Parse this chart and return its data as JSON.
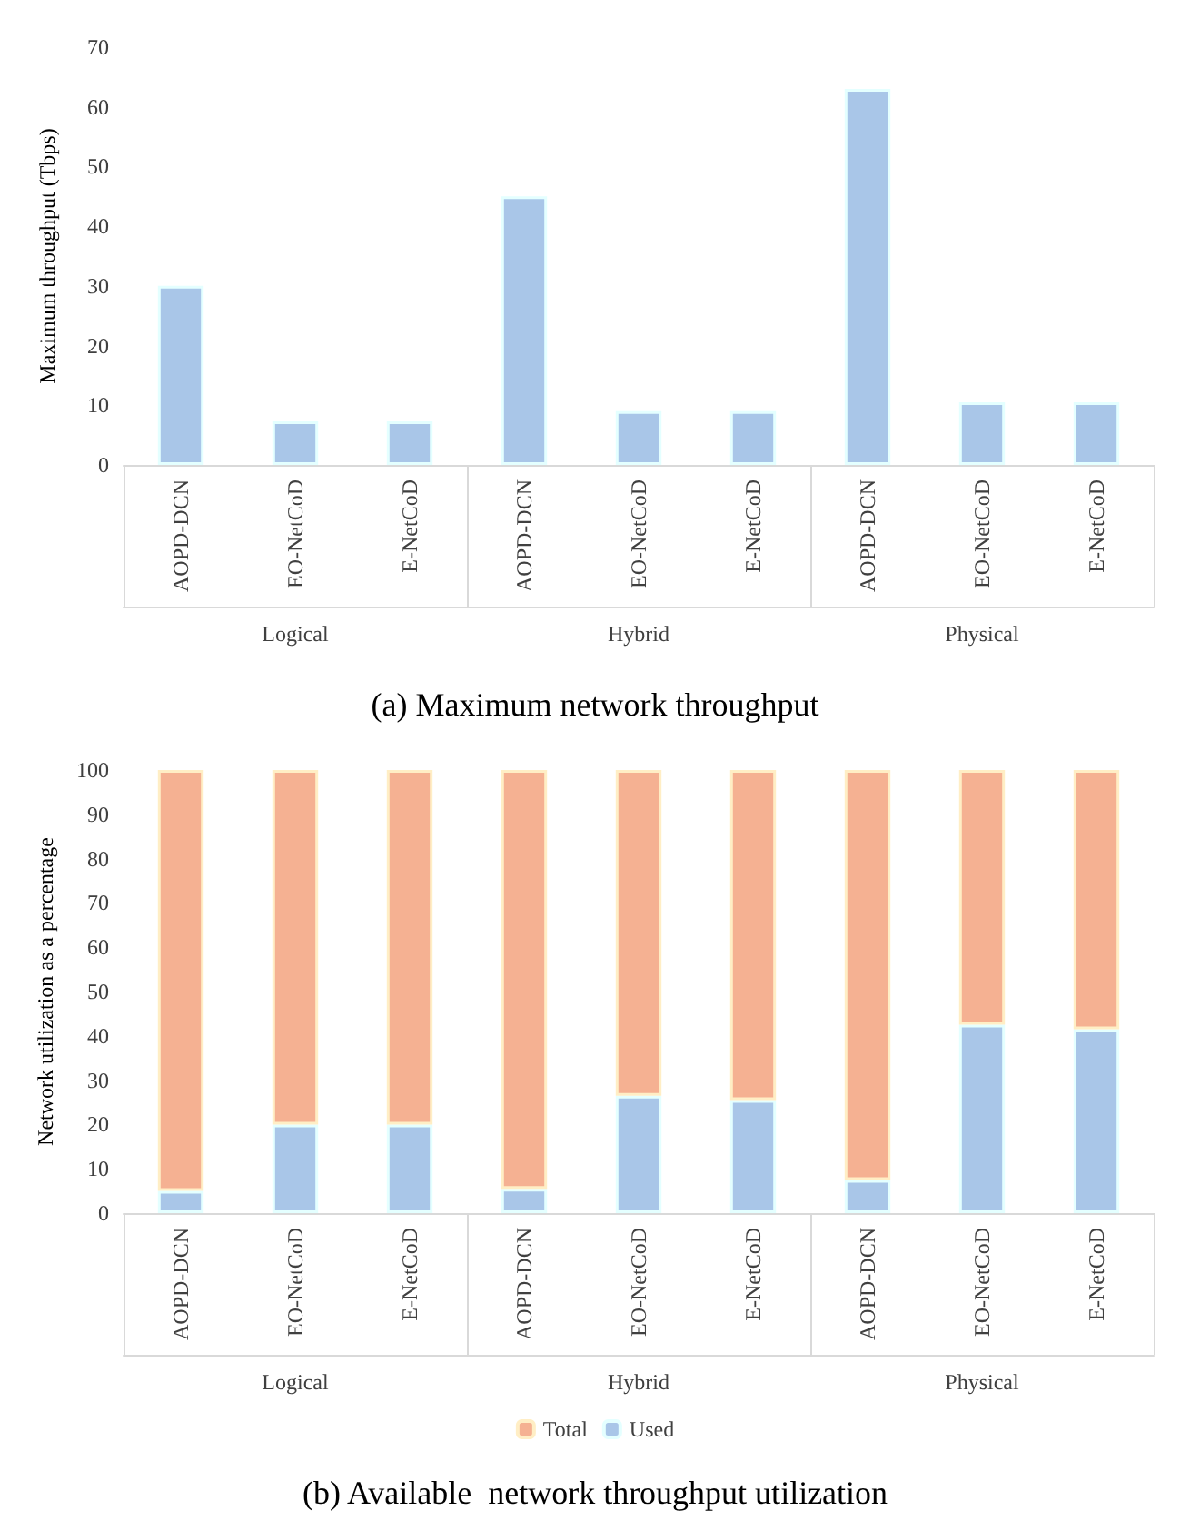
{
  "chart_data": [
    {
      "type": "bar",
      "title": "(a) Maximum network throughput",
      "ylabel": "Maximum throughput (Tbps)",
      "categories": [
        "AOPD-DCN",
        "EO-NetCoD",
        "E-NetCoD",
        "AOPD-DCN",
        "EO-NetCoD",
        "E-NetCoD",
        "AOPD-DCN",
        "EO-NetCoD",
        "E-NetCoD"
      ],
      "annotations": [
        "Logical",
        "Hybrid",
        "Physical"
      ],
      "values": [
        30,
        7.3,
        7.3,
        45,
        9,
        9,
        63,
        10.5,
        10.5
      ],
      "color": "#a9c6e8",
      "ylim": [
        0,
        70
      ],
      "yticks": [
        0,
        10,
        20,
        30,
        40,
        50,
        60,
        70
      ],
      "legend": false
    },
    {
      "type": "bar",
      "title": "(b) Available  network throughput utilization",
      "ylabel": "Network utilization as a percentage",
      "categories": [
        "AOPD-DCN",
        "EO-NetCoD",
        "E-NetCoD",
        "AOPD-DCN",
        "EO-NetCoD",
        "E-NetCoD",
        "AOPD-DCN",
        "EO-NetCoD",
        "E-NetCoD"
      ],
      "annotations": [
        "Logical",
        "Hybrid",
        "Physical"
      ],
      "stacked": true,
      "series": [
        {
          "name": "Used",
          "color": "#a9c6e8",
          "values": [
            5,
            20,
            20,
            5.5,
            26.5,
            25.5,
            7.5,
            42.5,
            41.5
          ]
        },
        {
          "name": "Total",
          "color": "#f5b192",
          "values": [
            95,
            80,
            80,
            94.5,
            73.5,
            74.5,
            92.5,
            57.5,
            58.5
          ]
        }
      ],
      "ylim": [
        0,
        100
      ],
      "yticks": [
        0,
        10,
        20,
        30,
        40,
        50,
        60,
        70,
        80,
        90,
        100
      ],
      "legend": "bottom"
    }
  ]
}
